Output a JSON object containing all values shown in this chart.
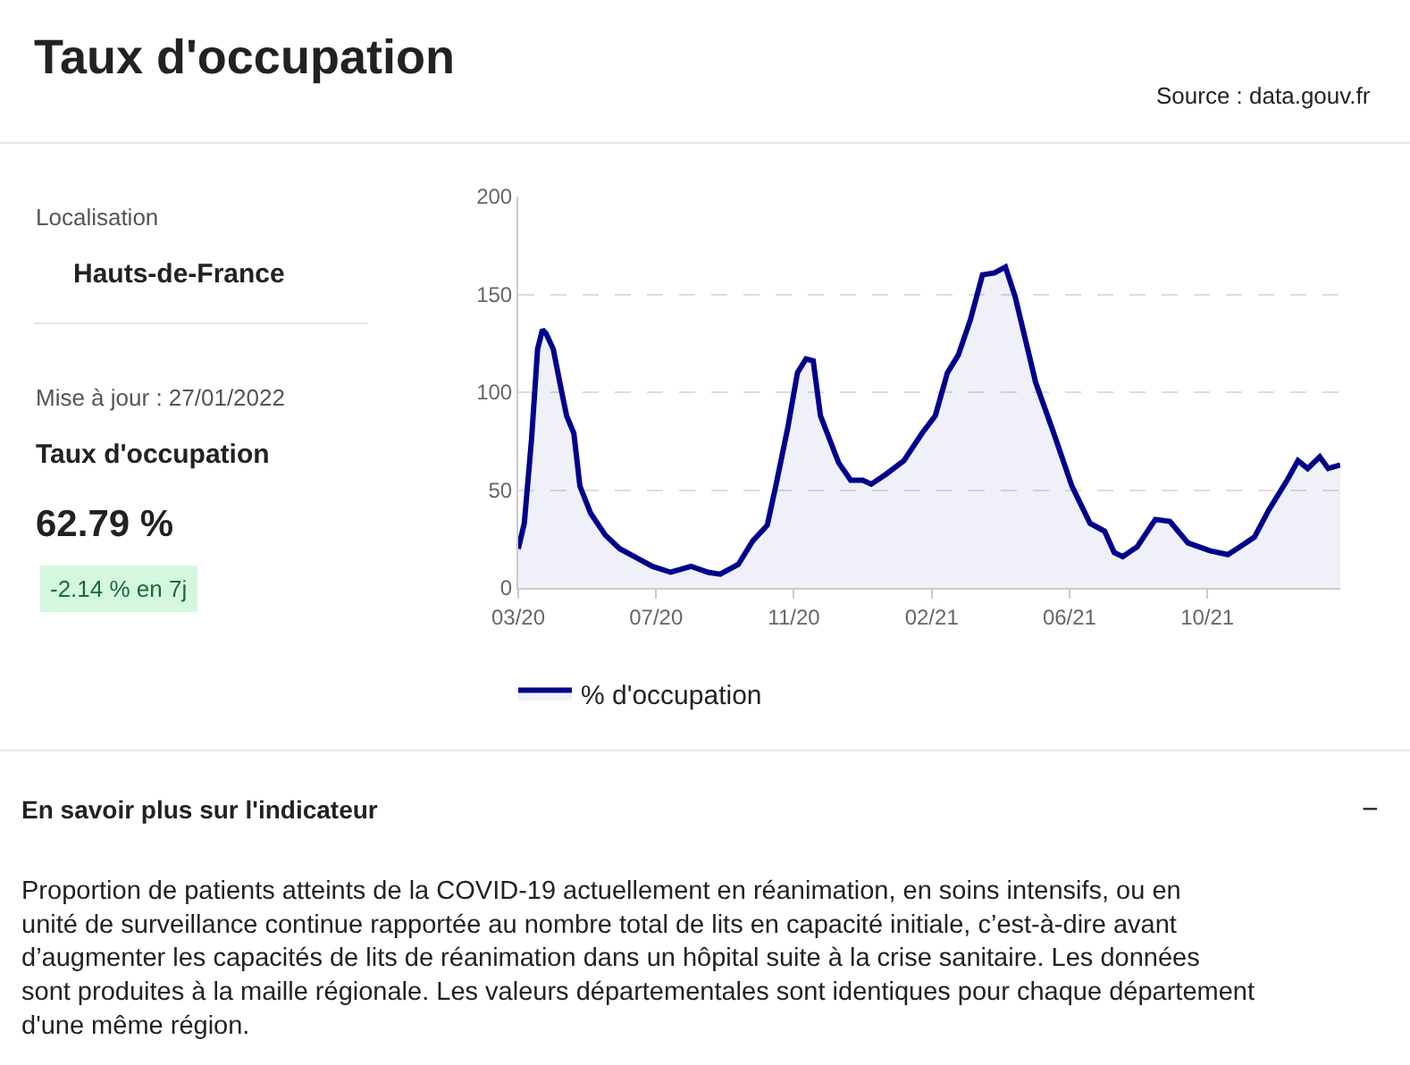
{
  "chart_data": {
    "type": "area",
    "title": "Taux d'occupation",
    "x": [
      "2020-03-18",
      "2020-03-23",
      "2020-03-29",
      "2020-04-03",
      "2020-04-07",
      "2020-04-10",
      "2020-04-16",
      "2020-04-22",
      "2020-04-27",
      "2020-05-03",
      "2020-05-08",
      "2020-05-17",
      "2020-05-29",
      "2020-06-10",
      "2020-06-25",
      "2020-07-07",
      "2020-07-22",
      "2020-08-08",
      "2020-08-22",
      "2020-09-01",
      "2020-09-16",
      "2020-09-28",
      "2020-10-10",
      "2020-10-17",
      "2020-10-27",
      "2020-11-04",
      "2020-11-11",
      "2020-11-17",
      "2020-11-23",
      "2020-12-08",
      "2020-12-18",
      "2020-12-28",
      "2021-01-04",
      "2021-01-16",
      "2021-01-31",
      "2021-02-15",
      "2021-02-26",
      "2021-03-08",
      "2021-03-17",
      "2021-03-27",
      "2021-04-06",
      "2021-04-16",
      "2021-04-25",
      "2021-05-03",
      "2021-05-20",
      "2021-06-04",
      "2021-06-19",
      "2021-07-04",
      "2021-07-16",
      "2021-07-24",
      "2021-07-31",
      "2021-08-12",
      "2021-08-27",
      "2021-09-08",
      "2021-09-23",
      "2021-10-11",
      "2021-10-26",
      "2021-11-05",
      "2021-11-17",
      "2021-11-29",
      "2021-12-14",
      "2021-12-23",
      "2021-12-31",
      "2022-01-10",
      "2022-01-17",
      "2022-01-27"
    ],
    "series": [
      {
        "name": "% d'occupation",
        "color": "#00008b",
        "values": [
          20,
          33,
          76,
          122,
          132,
          130,
          122,
          103,
          88,
          79,
          52,
          38,
          27,
          20,
          15,
          11,
          8,
          11,
          8,
          7,
          12,
          24,
          32,
          52,
          82,
          110,
          117,
          116,
          88,
          64,
          55,
          55,
          53,
          58,
          65,
          79,
          88,
          110,
          119,
          137,
          160,
          161,
          164,
          149,
          105,
          79,
          52,
          33,
          29,
          18,
          16,
          21,
          35,
          34,
          23,
          19,
          17,
          21,
          26,
          40,
          55,
          65,
          61,
          67,
          61,
          62.79
        ]
      }
    ],
    "xlim": [
      "2020-03-18",
      "2022-01-27"
    ],
    "xticks": [
      {
        "value": "2020-03-18",
        "label": "03/20"
      },
      {
        "value": "2020-07-10",
        "label": "07/20"
      },
      {
        "value": "2020-11-01",
        "label": "11/20"
      },
      {
        "value": "2021-02-23",
        "label": "02/21"
      },
      {
        "value": "2021-06-17",
        "label": "06/21"
      },
      {
        "value": "2021-10-09",
        "label": "10/21"
      }
    ],
    "ylim": [
      0,
      200
    ],
    "yticks": [
      0,
      50,
      100,
      150,
      200
    ],
    "grid": "y",
    "legend": "bottom",
    "marker": "none",
    "line_style": "solid",
    "annotations": [
      "Source : data.gouv.fr",
      "Localisation",
      "Hauts-de-France",
      "Mise à jour : 27/01/2022",
      "Taux d'occupation",
      "62.79 %",
      "-2.14 % en 7j",
      "En savoir plus sur l'indicateur",
      "−",
      "Proportion de patients atteints de la COVID-19 actuellement en réanimation, en soins intensifs, ou en unité de surveillance continue rapportée au nombre total de lits en capacité initiale, c’est-à-dire avant d’augmenter les capacités de lits de réanimation dans un hôpital suite à la crise sanitaire. Les données sont produites à la maille régionale. Les valeurs départementales sont identiques pour chaque département d'une même région."
    ]
  }
}
